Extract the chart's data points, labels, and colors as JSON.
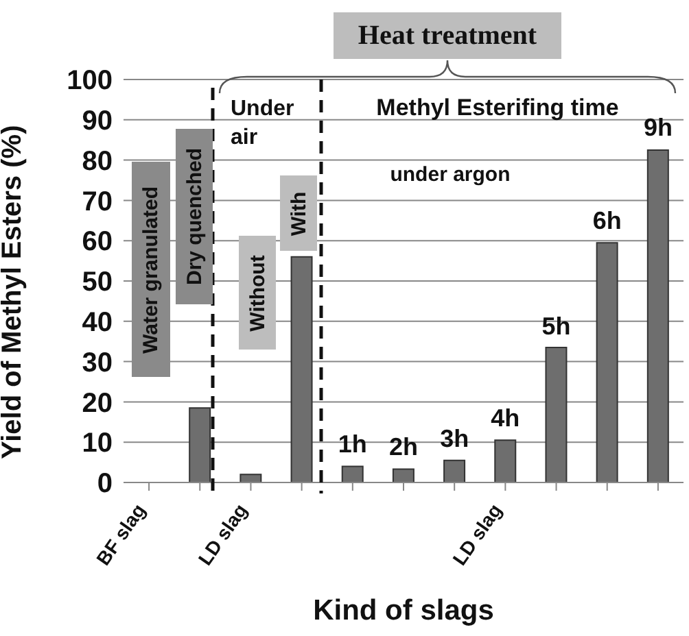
{
  "chart_data": {
    "type": "bar",
    "xlabel": "Kind of slags",
    "ylabel": "Yield of Methyl Esters (%)",
    "categories": [
      "BF slag",
      null,
      "LD slag",
      null,
      null,
      null,
      null,
      "LD slag",
      null,
      null,
      null
    ],
    "values": [
      0,
      18.5,
      2,
      56,
      4,
      3.3,
      5.5,
      10.5,
      33.5,
      59.5,
      82.5
    ],
    "color": "#6e6e6e",
    "ylim": [
      0,
      100
    ],
    "yticks": [
      0,
      10,
      20,
      30,
      40,
      50,
      60,
      70,
      80,
      90,
      100
    ],
    "grid": "y",
    "annotations": [
      "Heat treatment",
      "Under air",
      "Methyl Esterifing time",
      "under argon",
      "Water granulated",
      "Dry quenched",
      "Without",
      "With",
      "1h",
      "2h",
      "3h",
      "4h",
      "5h",
      "6h",
      "9h"
    ]
  }
}
